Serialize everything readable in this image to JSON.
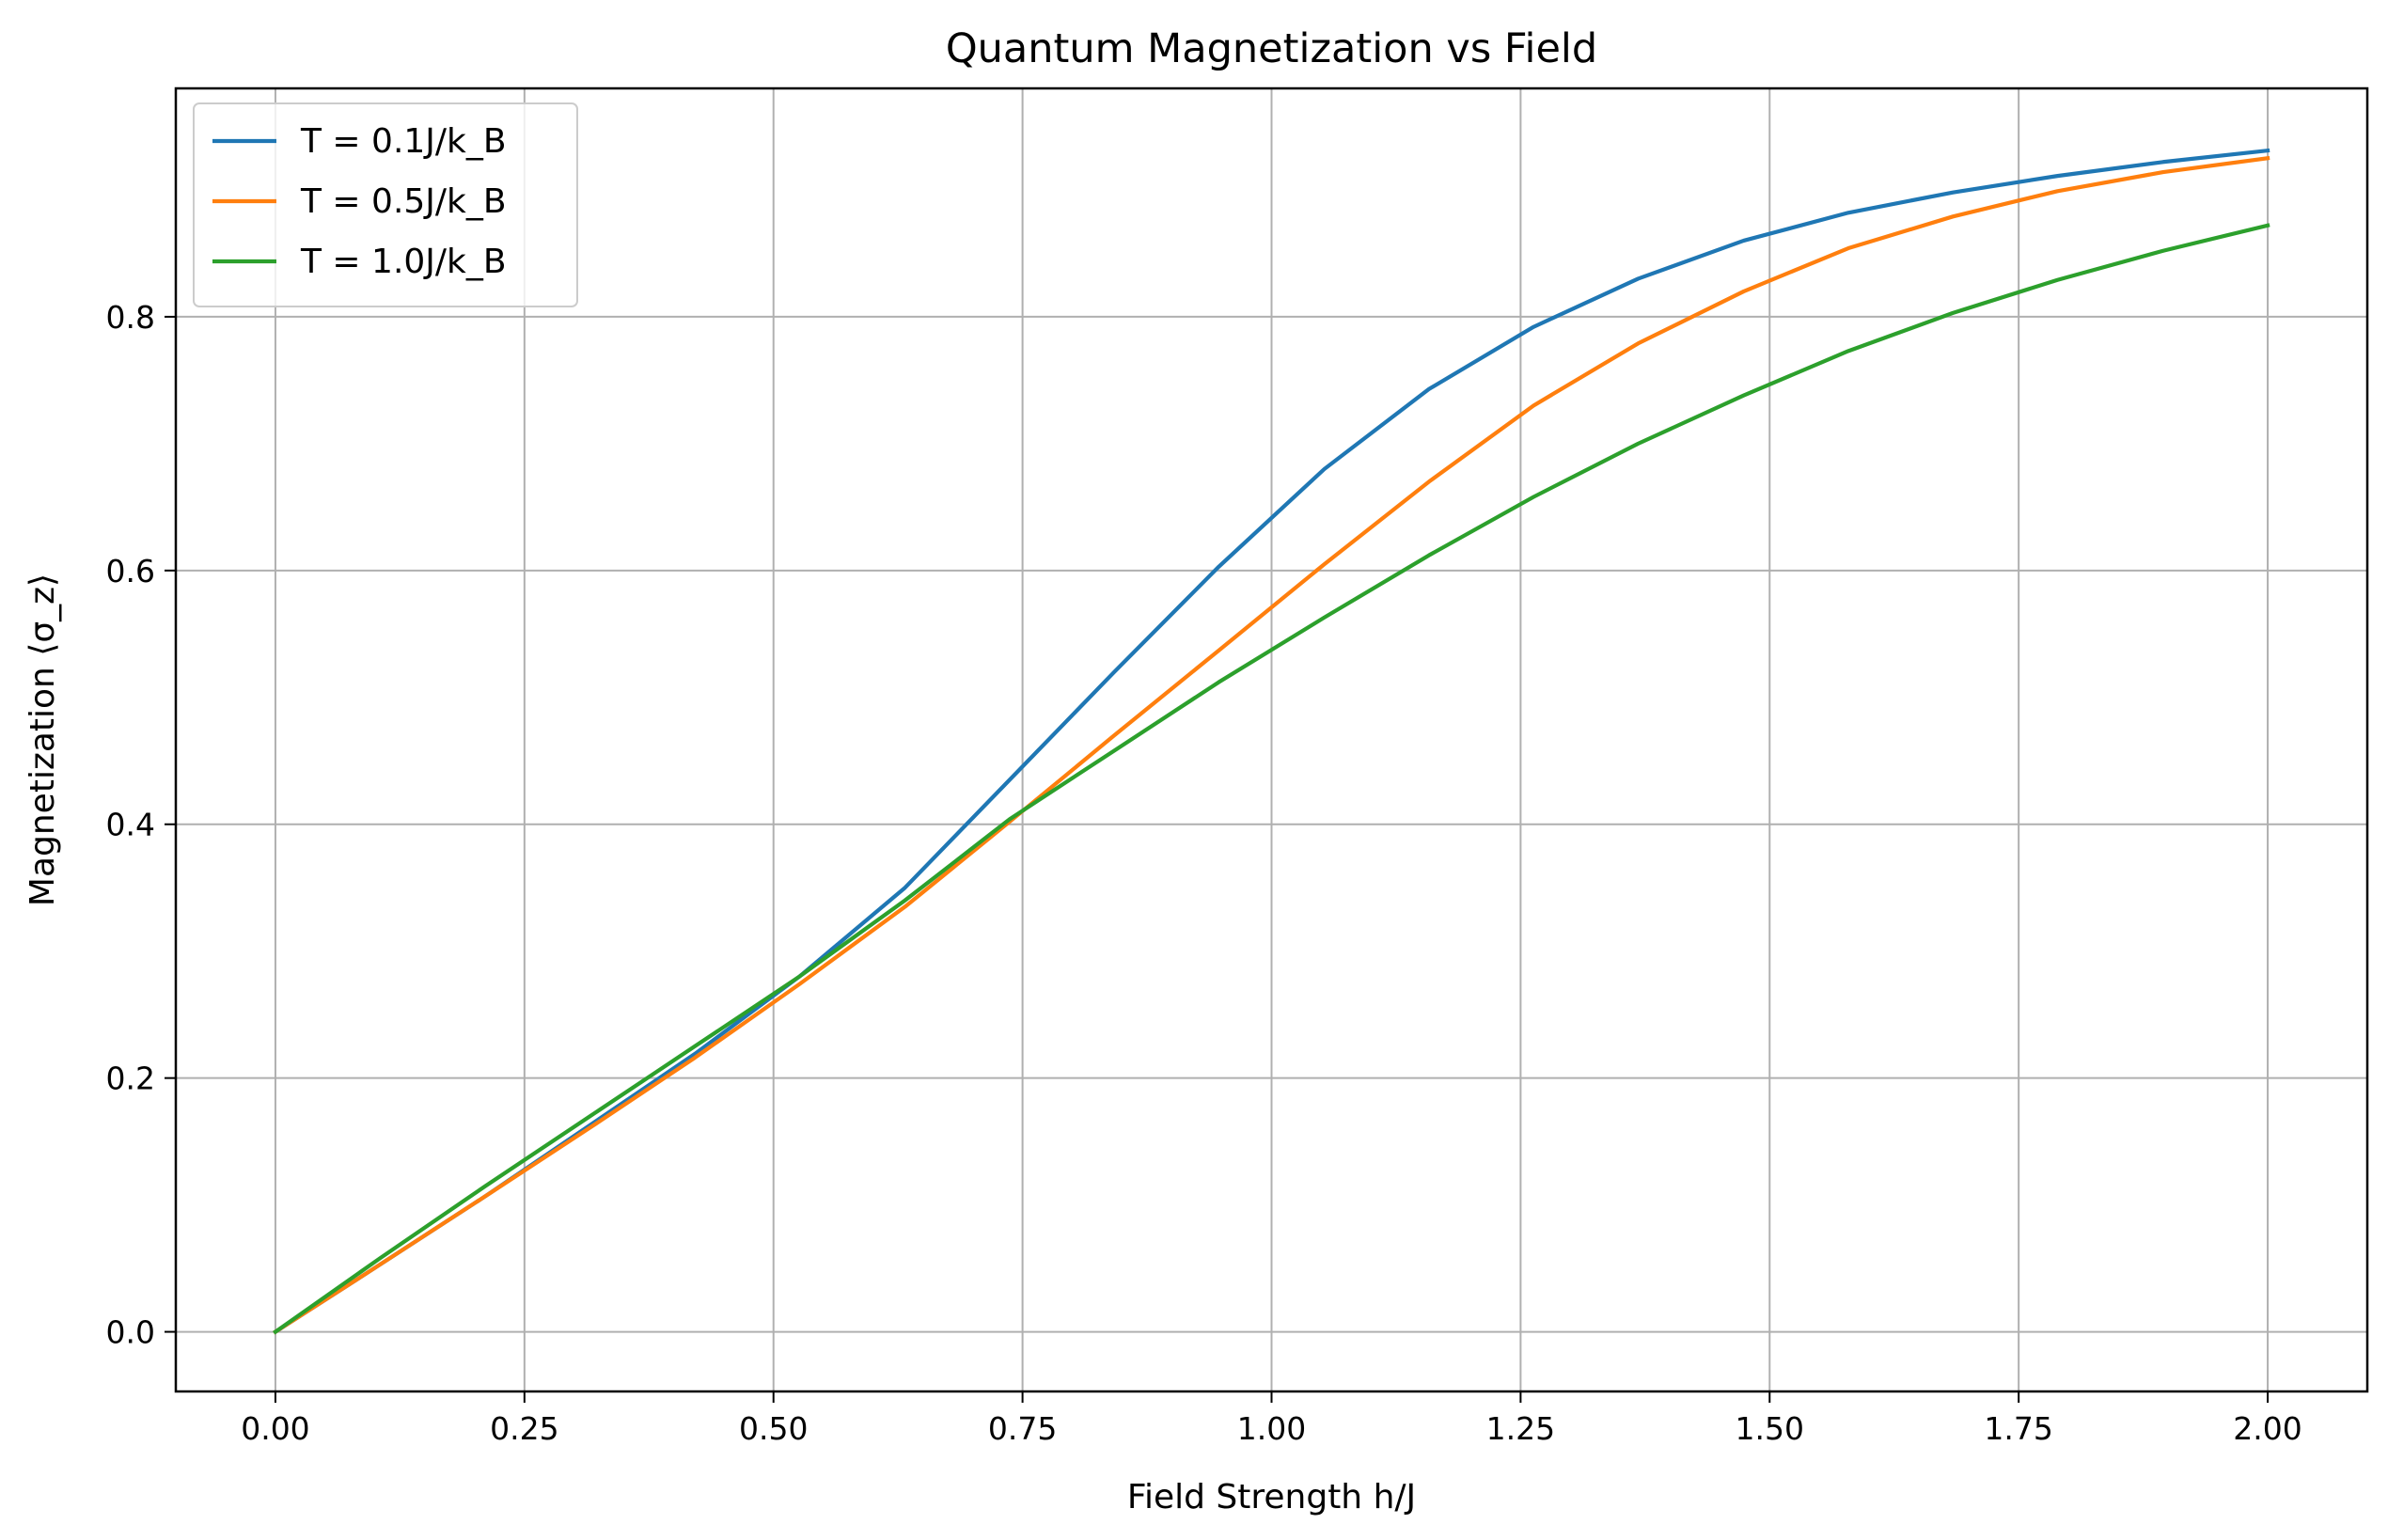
{
  "chart_data": {
    "type": "line",
    "title": "Quantum Magnetization vs Field",
    "xlabel": "Field Strength h/J",
    "ylabel": "Magnetization ⟨σ_z⟩",
    "xlim": [
      -0.1,
      2.1
    ],
    "ylim": [
      -0.047,
      0.98
    ],
    "x_ticks": [
      0.0,
      0.25,
      0.5,
      0.75,
      1.0,
      1.25,
      1.5,
      1.75,
      2.0
    ],
    "x_tick_labels": [
      "0.00",
      "0.25",
      "0.50",
      "0.75",
      "1.00",
      "1.25",
      "1.50",
      "1.75",
      "2.00"
    ],
    "y_ticks": [
      0.0,
      0.2,
      0.4,
      0.6,
      0.8
    ],
    "y_tick_labels": [
      "0.0",
      "0.2",
      "0.4",
      "0.6",
      "0.8"
    ],
    "grid": true,
    "legend_position": "top-left",
    "x": [
      0.0,
      0.105,
      0.211,
      0.316,
      0.421,
      0.526,
      0.632,
      0.737,
      0.842,
      0.947,
      1.053,
      1.158,
      1.263,
      1.368,
      1.474,
      1.579,
      1.684,
      1.789,
      1.895,
      2.0
    ],
    "series": [
      {
        "name": "T = 0.1J/k_B",
        "color": "#1f77b4",
        "values": [
          0.0,
          0.053,
          0.107,
          0.163,
          0.219,
          0.28,
          0.35,
          0.435,
          0.52,
          0.603,
          0.68,
          0.743,
          0.792,
          0.83,
          0.86,
          0.882,
          0.898,
          0.911,
          0.922,
          0.931
        ]
      },
      {
        "name": "T = 0.5J/k_B",
        "color": "#ff7f0e",
        "values": [
          0.0,
          0.053,
          0.107,
          0.161,
          0.216,
          0.274,
          0.335,
          0.402,
          0.47,
          0.537,
          0.605,
          0.67,
          0.73,
          0.779,
          0.82,
          0.854,
          0.879,
          0.899,
          0.914,
          0.925
        ]
      },
      {
        "name": "T = 1.0J/k_B",
        "color": "#2ca02c",
        "values": [
          0.0,
          0.058,
          0.115,
          0.17,
          0.225,
          0.28,
          0.34,
          0.404,
          0.458,
          0.512,
          0.563,
          0.612,
          0.658,
          0.7,
          0.738,
          0.773,
          0.803,
          0.829,
          0.852,
          0.872
        ]
      }
    ]
  }
}
